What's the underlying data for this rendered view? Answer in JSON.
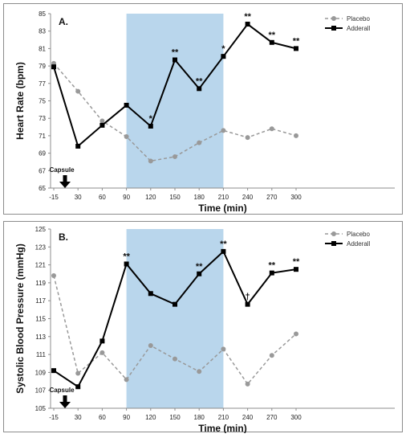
{
  "colors": {
    "shade": "#b9d6ec",
    "placebo": "#999999",
    "adderall": "#000000",
    "axis": "#8c8c8c"
  },
  "chart_data": [
    {
      "type": "line",
      "panel_label": "A.",
      "xlabel": "Time (min)",
      "ylabel": "Heart Rate (bpm)",
      "categories": [
        "-15",
        "30",
        "60",
        "90",
        "120",
        "150",
        "180",
        "210",
        "240",
        "270",
        "300"
      ],
      "ylim": [
        65,
        85
      ],
      "yticks": [
        65,
        67,
        69,
        71,
        73,
        75,
        77,
        79,
        81,
        83,
        85
      ],
      "shaded_x_range": [
        "90",
        "210"
      ],
      "legend_position": "top-right",
      "series": [
        {
          "name": "Placebo",
          "style": "dashed",
          "marker": "circle",
          "values": [
            79.3,
            76.1,
            72.7,
            70.9,
            68.1,
            68.6,
            70.2,
            71.6,
            70.8,
            71.8,
            71.0
          ]
        },
        {
          "name": "Adderall",
          "style": "solid",
          "marker": "square",
          "values": [
            78.9,
            69.8,
            72.2,
            74.5,
            72.1,
            79.7,
            76.4,
            80.1,
            83.8,
            81.7,
            81.0
          ]
        }
      ],
      "significance": [
        {
          "x": "120",
          "mark": "*"
        },
        {
          "x": "150",
          "mark": "**"
        },
        {
          "x": "180",
          "mark": "**"
        },
        {
          "x": "210",
          "mark": "*"
        },
        {
          "x": "240",
          "mark": "**"
        },
        {
          "x": "270",
          "mark": "**"
        },
        {
          "x": "300",
          "mark": "**"
        }
      ],
      "annotation": "Capsule"
    },
    {
      "type": "line",
      "panel_label": "B.",
      "xlabel": "Time (min)",
      "ylabel": "Systolic Blood Pressure (mmHg)",
      "categories": [
        "-15",
        "30",
        "60",
        "90",
        "120",
        "150",
        "180",
        "210",
        "240",
        "270",
        "300"
      ],
      "ylim": [
        105,
        125
      ],
      "yticks": [
        105,
        107,
        109,
        111,
        113,
        115,
        117,
        119,
        121,
        123,
        125
      ],
      "shaded_x_range": [
        "90",
        "210"
      ],
      "legend_position": "top-right",
      "series": [
        {
          "name": "Placebo",
          "style": "dashed",
          "marker": "circle",
          "values": [
            119.8,
            108.9,
            111.2,
            108.2,
            112.0,
            110.5,
            109.1,
            111.6,
            107.7,
            110.9,
            113.3
          ]
        },
        {
          "name": "Adderall",
          "style": "solid",
          "marker": "square",
          "values": [
            109.2,
            107.4,
            112.5,
            121.1,
            117.8,
            116.6,
            120.0,
            122.5,
            116.6,
            120.1,
            120.5
          ]
        }
      ],
      "significance": [
        {
          "x": "90",
          "mark": "**"
        },
        {
          "x": "180",
          "mark": "**"
        },
        {
          "x": "210",
          "mark": "**"
        },
        {
          "x": "240",
          "mark": "†"
        },
        {
          "x": "270",
          "mark": "**"
        },
        {
          "x": "300",
          "mark": "**"
        }
      ],
      "annotation": "Capsule"
    }
  ]
}
